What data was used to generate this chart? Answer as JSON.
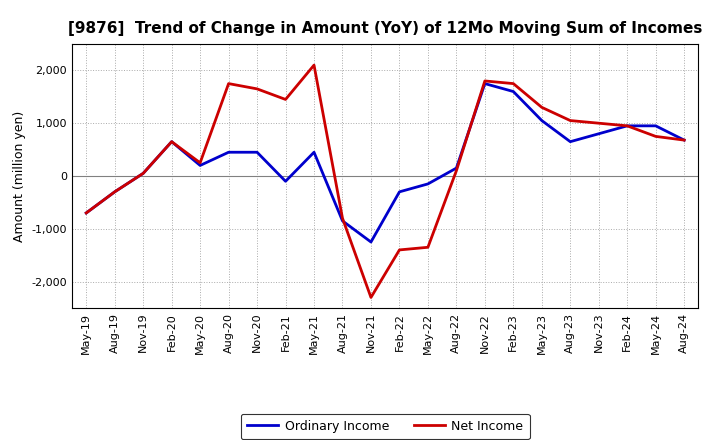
{
  "title": "[9876]  Trend of Change in Amount (YoY) of 12Mo Moving Sum of Incomes",
  "ylabel": "Amount (million yen)",
  "x_labels": [
    "May-19",
    "Aug-19",
    "Nov-19",
    "Feb-20",
    "May-20",
    "Aug-20",
    "Nov-20",
    "Feb-21",
    "May-21",
    "Aug-21",
    "Nov-21",
    "Feb-22",
    "May-22",
    "Aug-22",
    "Nov-22",
    "Feb-23",
    "May-23",
    "Aug-23",
    "Nov-23",
    "Feb-24",
    "May-24",
    "Aug-24"
  ],
  "ordinary_income": [
    -700,
    -300,
    50,
    650,
    200,
    450,
    450,
    -100,
    450,
    -850,
    -1250,
    -300,
    -150,
    150,
    1750,
    1600,
    1050,
    650,
    800,
    950,
    950,
    680
  ],
  "net_income": [
    -700,
    -300,
    50,
    650,
    250,
    1750,
    1650,
    1450,
    2100,
    -800,
    -2300,
    -1400,
    -1350,
    100,
    1800,
    1750,
    1300,
    1050,
    1000,
    950,
    750,
    680
  ],
  "ordinary_color": "#0000cc",
  "net_color": "#cc0000",
  "ylim": [
    -2500,
    2500
  ],
  "yticks": [
    -2000,
    -1000,
    0,
    1000,
    2000
  ],
  "bg_color": "#ffffff",
  "grid_color": "#aaaaaa",
  "line_width": 2.0,
  "legend_labels": [
    "Ordinary Income",
    "Net Income"
  ],
  "title_fontsize": 11,
  "ylabel_fontsize": 9,
  "tick_fontsize": 8
}
